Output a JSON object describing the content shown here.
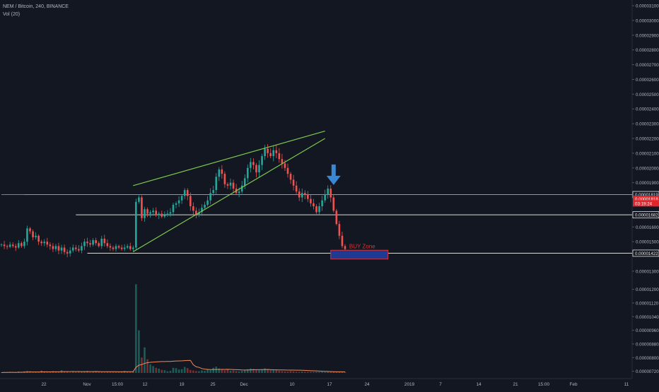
{
  "header": {
    "title": "NEM / Bitcoin, 240, BINANCE",
    "volume_label": "Vol (20)"
  },
  "chart_data": {
    "type": "candlestick",
    "symbol": "NEM / Bitcoin",
    "timeframe": "240",
    "exchange": "BINANCE",
    "price_axis_labels": [
      "0.00003100",
      "0.00003000",
      "0.00002900",
      "0.00002800",
      "0.00002700",
      "0.00002600",
      "0.00002500",
      "0.00002400",
      "0.00002300",
      "0.00002200",
      "0.00002100",
      "0.00002000",
      "0.00001900",
      "0.00001600",
      "0.00001500",
      "0.00001300"
    ],
    "volume_axis_labels": [
      "0.00001200",
      "0.00001120",
      "0.00001040",
      "0.00000960",
      "0.00000880",
      "0.00000800",
      "0.00000720"
    ],
    "time_axis_labels": [
      "22",
      "Nov",
      "15:00",
      "12",
      "19",
      "25",
      "Dec",
      "10",
      "17",
      "24",
      "2019",
      "7",
      "14",
      "21",
      "15:00",
      "Feb",
      "11"
    ],
    "price_markers": [
      {
        "label": "0.00001819",
        "price": 1.819e-05,
        "style": "outline"
      },
      {
        "label": "0.00001818",
        "price": 1.79e-05,
        "style": "red"
      },
      {
        "label": "03:19:24",
        "price": 1.76e-05,
        "style": "red"
      },
      {
        "label": "0.00001682",
        "price": 1.682e-05,
        "style": "outline"
      },
      {
        "label": "0.00001422",
        "price": 1.422e-05,
        "style": "outline"
      }
    ],
    "horizontal_levels": [
      {
        "price": 1.819e-05,
        "color": "#e05a5a",
        "from_index": 0
      },
      {
        "price": 1.819e-05,
        "color": "#ff6b6b",
        "from_index": 8
      },
      {
        "price": 1.682e-05,
        "color": "#d9d9d9",
        "from_index": 26
      },
      {
        "price": 1.422e-05,
        "color": "#d9d9d9",
        "from_index": 30
      }
    ],
    "trendlines": [
      {
        "from": [
          46,
          1.88e-05
        ],
        "to": [
          113,
          2.25e-05
        ],
        "color": "#7ec850"
      },
      {
        "from": [
          46,
          1.432e-05
        ],
        "to": [
          113,
          2.2e-05
        ],
        "color": "#7ec850"
      }
    ],
    "buy_zone": {
      "label": "BUY Zone",
      "from_index": 115,
      "to_index": 135,
      "top": 1.442e-05,
      "bottom": 1.382e-05,
      "fill": "#1f3a93",
      "border": "#e03030",
      "text_color": "#e03030"
    },
    "arrow": {
      "index": 116,
      "price": 1.87e-05,
      "color": "#3a87d6",
      "direction": "down"
    },
    "close_series": [
      1.48e-05,
      1.47e-05,
      1.465e-05,
      1.48e-05,
      1.47e-05,
      1.46e-05,
      1.49e-05,
      1.47e-05,
      1.5e-05,
      1.59e-05,
      1.57e-05,
      1.53e-05,
      1.54e-05,
      1.5e-05,
      1.49e-05,
      1.5e-05,
      1.48e-05,
      1.47e-05,
      1.45e-05,
      1.47e-05,
      1.44e-05,
      1.46e-05,
      1.43e-05,
      1.42e-05,
      1.44e-05,
      1.46e-05,
      1.45e-05,
      1.44e-05,
      1.47e-05,
      1.5e-05,
      1.49e-05,
      1.48e-05,
      1.51e-05,
      1.49e-05,
      1.47e-05,
      1.52e-05,
      1.49e-05,
      1.47e-05,
      1.46e-05,
      1.45e-05,
      1.47e-05,
      1.46e-05,
      1.45e-05,
      1.46e-05,
      1.47e-05,
      1.45e-05,
      1.46e-05,
      1.77e-05,
      1.8e-05,
      1.66e-05,
      1.72e-05,
      1.69e-05,
      1.7e-05,
      1.71e-05,
      1.68e-05,
      1.69e-05,
      1.67e-05,
      1.68e-05,
      1.69e-05,
      1.7e-05,
      1.75e-05,
      1.76e-05,
      1.78e-05,
      1.81e-05,
      1.85e-05,
      1.81e-05,
      1.74e-05,
      1.71e-05,
      1.68e-05,
      1.7e-05,
      1.73e-05,
      1.75e-05,
      1.78e-05,
      1.83e-05,
      1.85e-05,
      1.94e-05,
      1.99e-05,
      1.96e-05,
      1.89e-05,
      1.88e-05,
      1.9e-05,
      1.86e-05,
      1.83e-05,
      1.84e-05,
      1.88e-05,
      1.93e-05,
      2e-05,
      2.04e-05,
      2.02e-05,
      1.97e-05,
      2.02e-05,
      2.08e-05,
      2.13e-05,
      2.1e-05,
      2.08e-05,
      2.12e-05,
      2.1e-05,
      2.06e-05,
      2.03e-05,
      2e-05,
      1.96e-05,
      1.92e-05,
      1.88e-05,
      1.84e-05,
      1.8e-05,
      1.83e-05,
      1.82e-05,
      1.79e-05,
      1.76e-05,
      1.74e-05,
      1.7e-05,
      1.74e-05,
      1.78e-05,
      1.82e-05,
      1.86e-05,
      1.8e-05,
      1.71e-05,
      1.62e-05,
      1.54e-05,
      1.47e-05,
      1.45e-05
    ],
    "volume_series": [
      7.12e-06,
      7.14e-06,
      7.13e-06,
      7.16e-06,
      7.13e-06,
      7.12e-06,
      7.18e-06,
      7.15e-06,
      7.19e-06,
      7.22e-06,
      7.2e-06,
      7.16e-06,
      7.14e-06,
      7.16e-06,
      7.24e-06,
      7.19e-06,
      7.17e-06,
      7.15e-06,
      7.21e-06,
      7.16e-06,
      7.18e-06,
      7.26e-06,
      7.19e-06,
      7.17e-06,
      7.13e-06,
      7.16e-06,
      7.15e-06,
      7.18e-06,
      7.16e-06,
      7.19e-06,
      7.22e-06,
      7.15e-06,
      7.17e-06,
      7.19e-06,
      7.16e-06,
      7.15e-06,
      7.14e-06,
      7.17e-06,
      7.18e-06,
      7.16e-06,
      7.15e-06,
      7.18e-06,
      7.19e-06,
      7.22e-06,
      7.18e-06,
      7.16e-06,
      7.19e-06,
      1.23e-05,
      9.6e-06,
      8e-06,
      8.6e-06,
      7.9e-06,
      7.6e-06,
      7.5e-06,
      7.4e-06,
      7.35e-06,
      7.28e-06,
      7.26e-06,
      7.2e-06,
      7.22e-06,
      7.4e-06,
      7.38e-06,
      7.3e-06,
      7.32e-06,
      7.45e-06,
      7.38e-06,
      7.27e-06,
      7.24e-06,
      7.21e-06,
      7.2e-06,
      7.25e-06,
      7.23e-06,
      7.29e-06,
      7.26e-06,
      7.4e-06,
      7.47e-06,
      7.36e-06,
      7.29e-06,
      7.26e-06,
      7.31e-06,
      7.23e-06,
      7.25e-06,
      7.21e-06,
      7.19e-06,
      7.23e-06,
      7.26e-06,
      7.32e-06,
      7.36e-06,
      7.34e-06,
      7.29e-06,
      7.26e-06,
      7.31e-06,
      7.37e-06,
      7.29e-06,
      7.26e-06,
      7.31e-06,
      7.28e-06,
      7.23e-06,
      7.21e-06,
      7.19e-06,
      7.18e-06,
      7.21e-06,
      7.19e-06,
      7.17e-06,
      7.16e-06,
      7.18e-06,
      7.17e-06,
      7.16e-06,
      7.16e-06,
      7.15e-06,
      7.16e-06,
      7.15e-06,
      7.16e-06,
      7.15e-06,
      7.16e-06,
      7.16e-06,
      7.16e-06,
      7.16e-06,
      7.16e-06,
      7.16e-06,
      7.16e-06
    ],
    "colors": {
      "background": "#131722",
      "up": "#26a69a",
      "down": "#ef5350",
      "ma": "#f08a5a",
      "axis_text": "#b2b5be",
      "grid": "#1f2430"
    },
    "grid": false
  }
}
